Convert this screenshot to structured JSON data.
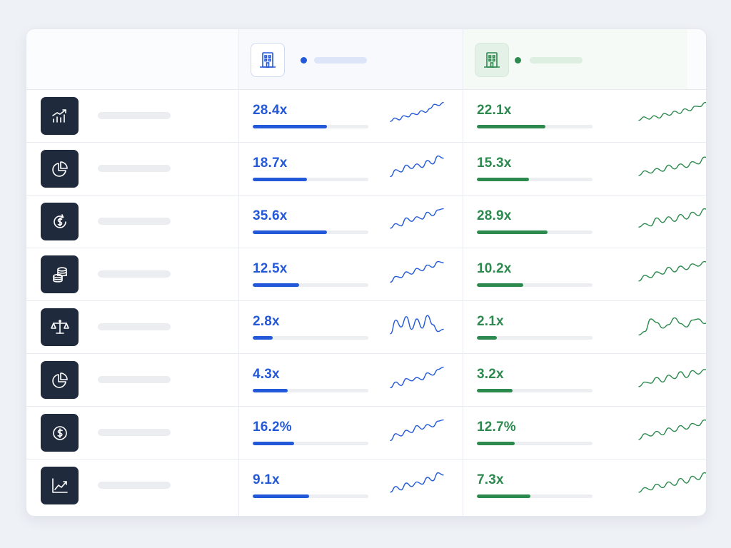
{
  "colors": {
    "company_a": "#2359d8",
    "company_b": "#2c8a4e",
    "icon_tile": "#1f2a3d"
  },
  "header": {
    "columns": [
      {
        "icon": "building-icon",
        "color": "#2359d8"
      },
      {
        "icon": "building-icon",
        "color": "#2c8a4e"
      }
    ]
  },
  "rows": [
    {
      "icon": "trending-bar-chart-icon",
      "a": {
        "value": "28.4x",
        "fill": 0.64,
        "trend": [
          0.15,
          0.3,
          0.22,
          0.4,
          0.35,
          0.5,
          0.45,
          0.62,
          0.55,
          0.72,
          0.9,
          0.85,
          0.98
        ]
      },
      "b": {
        "value": "22.1x",
        "fill": 0.59,
        "trend": [
          0.2,
          0.35,
          0.25,
          0.4,
          0.3,
          0.5,
          0.42,
          0.6,
          0.5,
          0.7,
          0.62,
          0.82,
          0.8,
          0.98,
          0.9
        ]
      }
    },
    {
      "icon": "pie-chart-icon",
      "a": {
        "value": "18.7x",
        "fill": 0.47,
        "trend": [
          0.05,
          0.35,
          0.25,
          0.55,
          0.4,
          0.6,
          0.45,
          0.75,
          0.6,
          0.95,
          0.85
        ]
      },
      "b": {
        "value": "15.3x",
        "fill": 0.45,
        "trend": [
          0.1,
          0.3,
          0.2,
          0.4,
          0.28,
          0.55,
          0.38,
          0.6,
          0.45,
          0.7,
          0.6,
          0.9,
          0.85
        ]
      }
    },
    {
      "icon": "dollar-cycle-icon",
      "a": {
        "value": "35.6x",
        "fill": 0.64,
        "trend": [
          0.1,
          0.3,
          0.2,
          0.55,
          0.4,
          0.6,
          0.5,
          0.8,
          0.65,
          0.9,
          0.95
        ]
      },
      "b": {
        "value": "28.9x",
        "fill": 0.61,
        "trend": [
          0.15,
          0.3,
          0.2,
          0.55,
          0.35,
          0.6,
          0.4,
          0.7,
          0.5,
          0.8,
          0.65,
          0.95,
          0.85
        ]
      }
    },
    {
      "icon": "coin-stack-icon",
      "a": {
        "value": "12.5x",
        "fill": 0.4,
        "trend": [
          0.05,
          0.3,
          0.25,
          0.5,
          0.4,
          0.65,
          0.55,
          0.8,
          0.7,
          0.95,
          0.9
        ]
      },
      "b": {
        "value": "10.2x",
        "fill": 0.4,
        "trend": [
          0.1,
          0.35,
          0.25,
          0.5,
          0.4,
          0.7,
          0.5,
          0.75,
          0.6,
          0.85,
          0.75,
          0.95,
          0.85
        ]
      }
    },
    {
      "icon": "balance-scale-icon",
      "a": {
        "value": "2.8x",
        "fill": 0.17,
        "trend": [
          0.1,
          0.7,
          0.4,
          0.85,
          0.3,
          0.75,
          0.35,
          0.9,
          0.5,
          0.2,
          0.3
        ]
      },
      "b": {
        "value": "2.1x",
        "fill": 0.17,
        "trend": [
          0.05,
          0.2,
          0.75,
          0.6,
          0.35,
          0.5,
          0.8,
          0.55,
          0.4,
          0.7,
          0.75,
          0.55,
          0.6
        ]
      }
    },
    {
      "icon": "pie-chart-icon",
      "a": {
        "value": "4.3x",
        "fill": 0.3,
        "trend": [
          0.05,
          0.3,
          0.15,
          0.45,
          0.35,
          0.5,
          0.4,
          0.7,
          0.6,
          0.85,
          0.95
        ]
      },
      "b": {
        "value": "3.2x",
        "fill": 0.31,
        "trend": [
          0.1,
          0.3,
          0.25,
          0.5,
          0.3,
          0.6,
          0.45,
          0.75,
          0.5,
          0.8,
          0.65,
          0.85,
          0.8
        ]
      }
    },
    {
      "icon": "dollar-coin-icon",
      "a": {
        "value": "16.2%",
        "fill": 0.36,
        "trend": [
          0.05,
          0.35,
          0.25,
          0.5,
          0.4,
          0.7,
          0.55,
          0.75,
          0.65,
          0.9,
          0.95
        ]
      },
      "b": {
        "value": "12.7%",
        "fill": 0.33,
        "trend": [
          0.1,
          0.35,
          0.25,
          0.45,
          0.3,
          0.6,
          0.45,
          0.7,
          0.55,
          0.8,
          0.7,
          0.95,
          0.9
        ]
      }
    },
    {
      "icon": "line-chart-icon",
      "a": {
        "value": "9.1x",
        "fill": 0.49,
        "trend": [
          0.1,
          0.35,
          0.2,
          0.5,
          0.35,
          0.55,
          0.45,
          0.75,
          0.6,
          0.95,
          0.85
        ]
      },
      "b": {
        "value": "7.3x",
        "fill": 0.46,
        "trend": [
          0.1,
          0.3,
          0.2,
          0.45,
          0.3,
          0.55,
          0.4,
          0.7,
          0.5,
          0.8,
          0.65,
          0.95,
          0.85
        ]
      }
    }
  ]
}
